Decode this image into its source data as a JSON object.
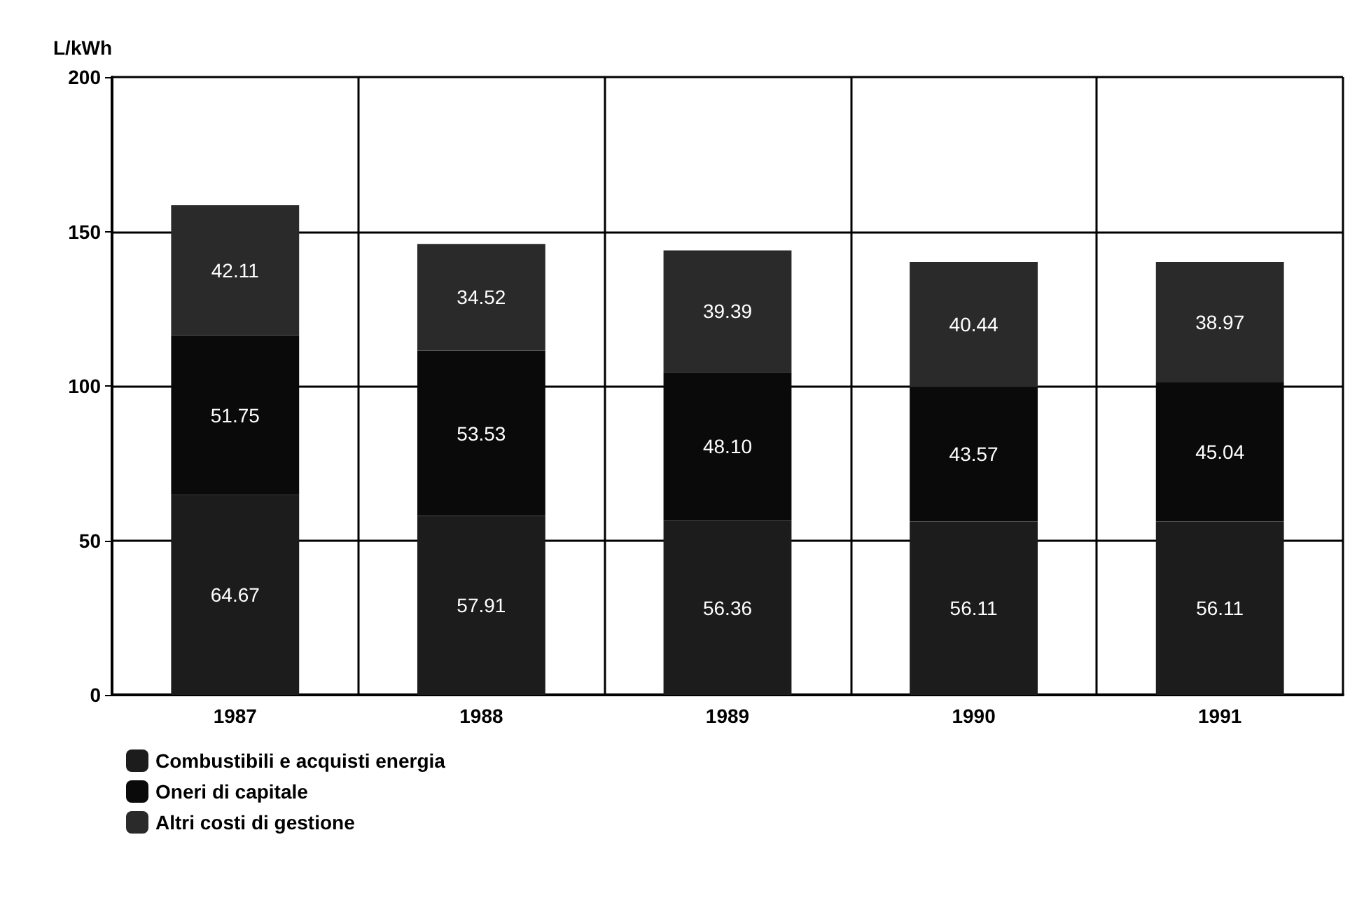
{
  "chart_data": {
    "type": "bar",
    "stacked": true,
    "ylabel": "L/kWh",
    "categories": [
      "1987",
      "1988",
      "1989",
      "1990",
      "1991"
    ],
    "ylim": [
      0,
      200
    ],
    "yticks": [
      0,
      50,
      100,
      150,
      200
    ],
    "grid": true,
    "legend": "bottom left",
    "series": [
      {
        "name": "Combustibili e acquisti energia",
        "color": "#1c1c1c",
        "values": [
          64.67,
          57.91,
          56.36,
          56.11,
          56.11
        ],
        "value_labels": [
          "64.67",
          "57.91",
          "56.36",
          "56.11",
          "56.11"
        ]
      },
      {
        "name": "Oneri di capitale",
        "color": "#0a0a0a",
        "values": [
          51.75,
          53.53,
          48.1,
          43.57,
          45.04
        ],
        "value_labels": [
          "51.75",
          "53.53",
          "48.10",
          "43.57",
          "45.04"
        ]
      },
      {
        "name": "Altri costi di gestione",
        "color": "#2a2a2a",
        "values": [
          42.11,
          34.52,
          39.39,
          40.44,
          38.97
        ],
        "value_labels": [
          "42.11",
          "34.52",
          "39.39",
          "40.44",
          "38.97"
        ]
      }
    ]
  }
}
